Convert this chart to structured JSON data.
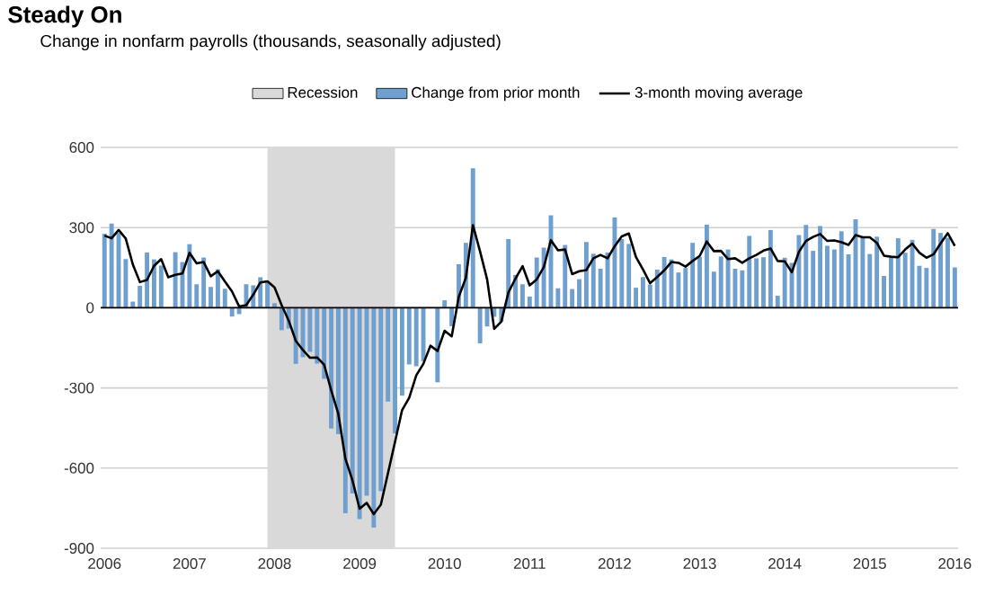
{
  "chart_data": {
    "type": "bar",
    "title": "Steady On",
    "subtitle": "Change in nonfarm payrolls (thousands, seasonally adjusted)",
    "x": [
      "2006-01",
      "2006-02",
      "2006-03",
      "2006-04",
      "2006-05",
      "2006-06",
      "2006-07",
      "2006-08",
      "2006-09",
      "2006-10",
      "2006-11",
      "2006-12",
      "2007-01",
      "2007-02",
      "2007-03",
      "2007-04",
      "2007-05",
      "2007-06",
      "2007-07",
      "2007-08",
      "2007-09",
      "2007-10",
      "2007-11",
      "2007-12",
      "2008-01",
      "2008-02",
      "2008-03",
      "2008-04",
      "2008-05",
      "2008-06",
      "2008-07",
      "2008-08",
      "2008-09",
      "2008-10",
      "2008-11",
      "2008-12",
      "2009-01",
      "2009-02",
      "2009-03",
      "2009-04",
      "2009-05",
      "2009-06",
      "2009-07",
      "2009-08",
      "2009-09",
      "2009-10",
      "2009-11",
      "2009-12",
      "2010-01",
      "2010-02",
      "2010-03",
      "2010-04",
      "2010-05",
      "2010-06",
      "2010-07",
      "2010-08",
      "2010-09",
      "2010-10",
      "2010-11",
      "2010-12",
      "2011-01",
      "2011-02",
      "2011-03",
      "2011-04",
      "2011-05",
      "2011-06",
      "2011-07",
      "2011-08",
      "2011-09",
      "2011-10",
      "2011-11",
      "2011-12",
      "2012-01",
      "2012-02",
      "2012-03",
      "2012-04",
      "2012-05",
      "2012-06",
      "2012-07",
      "2012-08",
      "2012-09",
      "2012-10",
      "2012-11",
      "2012-12",
      "2013-01",
      "2013-02",
      "2013-03",
      "2013-04",
      "2013-05",
      "2013-06",
      "2013-07",
      "2013-08",
      "2013-09",
      "2013-10",
      "2013-11",
      "2013-12",
      "2014-01",
      "2014-02",
      "2014-03",
      "2014-04",
      "2014-05",
      "2014-06",
      "2014-07",
      "2014-08",
      "2014-09",
      "2014-10",
      "2014-11",
      "2014-12",
      "2015-01",
      "2015-02",
      "2015-03",
      "2015-04",
      "2015-05",
      "2015-06",
      "2015-07",
      "2015-08",
      "2015-09",
      "2015-10",
      "2015-11",
      "2015-12",
      "2016-01"
    ],
    "series": [
      {
        "name": "Change from prior month",
        "color": "#6f9fcf",
        "values": [
          277,
          315,
          280,
          182,
          23,
          82,
          207,
          181,
          158,
          null,
          208,
          171,
          238,
          88,
          188,
          78,
          144,
          71,
          -33,
          -24,
          88,
          84,
          114,
          98,
          17,
          -84,
          -78,
          -210,
          -185,
          -165,
          -209,
          -266,
          -452,
          -473,
          -769,
          -695,
          -791,
          -703,
          -823,
          -686,
          -351,
          -470,
          -329,
          -212,
          -219,
          -200,
          null,
          -279,
          28,
          -69,
          163,
          243,
          522,
          -133,
          -70,
          -34,
          -52,
          257,
          123,
          88,
          42,
          188,
          225,
          346,
          73,
          235,
          70,
          107,
          246,
          202,
          146,
          207,
          338,
          257,
          239,
          75,
          115,
          87,
          143,
          190,
          181,
          132,
          149,
          243,
          190,
          311,
          135,
          192,
          218,
          146,
          140,
          269,
          185,
          189,
          291,
          45,
          187,
          168,
          272,
          310,
          213,
          306,
          232,
          218,
          286,
          200,
          331,
          261,
          201,
          266,
          119,
          187,
          260,
          206,
          254,
          157,
          149,
          295,
          280,
          262,
          151
        ]
      },
      {
        "name": "3-month moving average",
        "type": "line",
        "color": "#000000",
        "values": [
          270,
          260,
          291,
          259,
          162,
          96,
          104,
          157,
          182,
          114,
          123,
          128,
          206,
          166,
          171,
          118,
          137,
          98,
          61,
          5,
          10,
          49,
          95,
          99,
          76,
          10,
          -48,
          -124,
          -158,
          -187,
          -186,
          -213,
          -309,
          -397,
          -565,
          -646,
          -752,
          -730,
          -772,
          -737,
          -620,
          -502,
          -383,
          -337,
          -253,
          -210,
          -142,
          -162,
          -86,
          -107,
          41,
          112,
          309,
          211,
          106,
          -79,
          -52,
          57,
          109,
          156,
          84,
          106,
          152,
          253,
          215,
          218,
          126,
          137,
          141,
          185,
          198,
          185,
          230,
          267,
          278,
          190,
          143,
          92,
          115,
          140,
          171,
          168,
          154,
          175,
          194,
          248,
          212,
          213,
          182,
          185,
          168,
          185,
          198,
          214,
          222,
          175,
          174,
          133,
          209,
          250,
          265,
          276,
          250,
          252,
          245,
          235,
          272,
          264,
          264,
          243,
          195,
          191,
          189,
          218,
          240,
          206,
          187,
          200,
          241,
          279,
          231
        ]
      }
    ],
    "bands": [
      {
        "axis": "x",
        "from": "2007-12",
        "to": "2009-06",
        "label": "Recession",
        "color": "#d9d9d9"
      }
    ],
    "xlim": [
      "2005-12-15",
      "2016-01-15"
    ],
    "xticks": [
      "2006",
      "2007",
      "2008",
      "2009",
      "2010",
      "2011",
      "2012",
      "2013",
      "2014",
      "2015",
      "2016"
    ],
    "ylim": [
      -900,
      600
    ],
    "yticks": [
      -900,
      -600,
      -300,
      0,
      300,
      600
    ],
    "grid": "y",
    "legend": "top"
  }
}
